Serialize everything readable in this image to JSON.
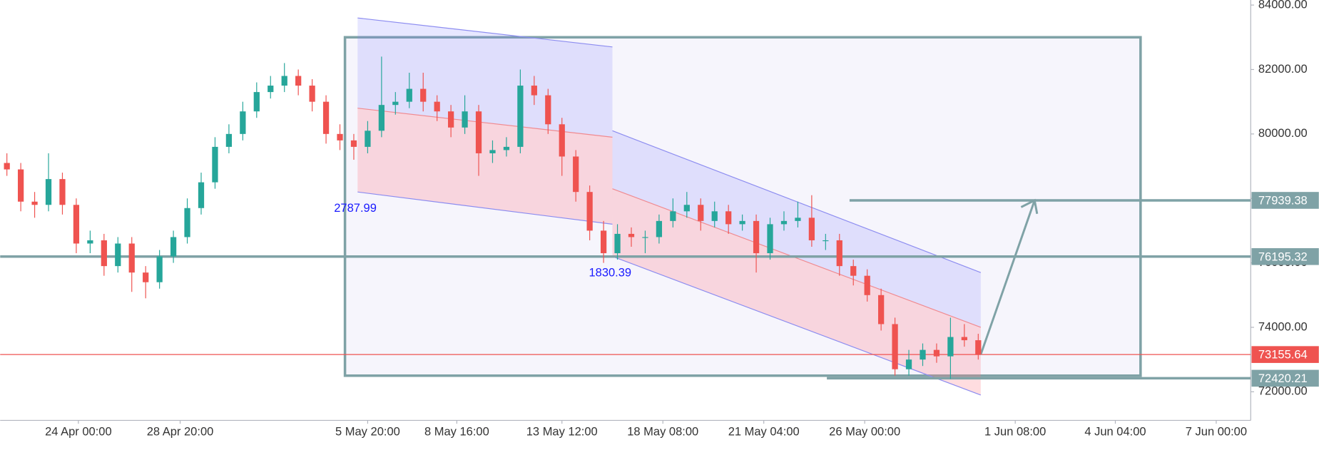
{
  "chart_data": {
    "type": "candlestick",
    "up_color": "#26a69a",
    "down_color": "#ef5350",
    "candles": [
      [
        79100,
        79400,
        78700,
        78900
      ],
      [
        78900,
        79100,
        77600,
        77900
      ],
      [
        77900,
        78200,
        77400,
        77800
      ],
      [
        77800,
        79400,
        77600,
        78600
      ],
      [
        78600,
        78800,
        77500,
        77800
      ],
      [
        77800,
        78000,
        76300,
        76600
      ],
      [
        76600,
        77000,
        76300,
        76700
      ],
      [
        76700,
        76900,
        75600,
        75900
      ],
      [
        75900,
        76800,
        75700,
        76600
      ],
      [
        76600,
        76800,
        75100,
        75700
      ],
      [
        75700,
        75900,
        74900,
        75400
      ],
      [
        75400,
        76400,
        75200,
        76200
      ],
      [
        76200,
        77000,
        76000,
        76800
      ],
      [
        76800,
        78000,
        76600,
        77700
      ],
      [
        77700,
        78800,
        77500,
        78500
      ],
      [
        78500,
        79900,
        78300,
        79600
      ],
      [
        79600,
        80300,
        79400,
        80000
      ],
      [
        80000,
        81000,
        79800,
        80700
      ],
      [
        80700,
        81600,
        80500,
        81300
      ],
      [
        81300,
        81800,
        81100,
        81500
      ],
      [
        81500,
        82200,
        81300,
        81800
      ],
      [
        81800,
        82000,
        81200,
        81500
      ],
      [
        81500,
        81700,
        80700,
        81000
      ],
      [
        81000,
        81200,
        79700,
        80000
      ],
      [
        80000,
        80300,
        79500,
        79800
      ],
      [
        79800,
        80000,
        79200,
        79600
      ],
      [
        79600,
        80400,
        79400,
        80100
      ],
      [
        80100,
        82400,
        79900,
        80900
      ],
      [
        80900,
        81300,
        80600,
        81000
      ],
      [
        81000,
        81900,
        80800,
        81400
      ],
      [
        81400,
        81900,
        80700,
        81000
      ],
      [
        81000,
        81200,
        80400,
        80700
      ],
      [
        80700,
        80900,
        79900,
        80200
      ],
      [
        80200,
        81200,
        80000,
        80700
      ],
      [
        80700,
        80900,
        78700,
        79400
      ],
      [
        79400,
        79800,
        79100,
        79500
      ],
      [
        79500,
        79900,
        79300,
        79600
      ],
      [
        79600,
        82000,
        79400,
        81500
      ],
      [
        81500,
        81800,
        80900,
        81200
      ],
      [
        81200,
        81400,
        80000,
        80300
      ],
      [
        80300,
        80500,
        78700,
        79300
      ],
      [
        79300,
        79500,
        77900,
        78200
      ],
      [
        78200,
        78400,
        76700,
        77000
      ],
      [
        77000,
        77300,
        76000,
        76300
      ],
      [
        76300,
        77200,
        76100,
        76900
      ],
      [
        76900,
        77100,
        76500,
        76800
      ],
      [
        76800,
        77000,
        76300,
        76800
      ],
      [
        76800,
        77500,
        76600,
        77300
      ],
      [
        77300,
        78000,
        77100,
        77600
      ],
      [
        77600,
        78200,
        77400,
        77800
      ],
      [
        77800,
        78000,
        77000,
        77300
      ],
      [
        77300,
        77900,
        77100,
        77600
      ],
      [
        77600,
        77800,
        76900,
        77200
      ],
      [
        77200,
        77500,
        77000,
        77300
      ],
      [
        77300,
        77500,
        75700,
        76300
      ],
      [
        76300,
        77400,
        76100,
        77200
      ],
      [
        77200,
        77600,
        77000,
        77300
      ],
      [
        77300,
        77900,
        77100,
        77400
      ],
      [
        77400,
        78100,
        76500,
        76700
      ],
      [
        76700,
        76900,
        76400,
        76700
      ],
      [
        76700,
        76900,
        75600,
        75900
      ],
      [
        75900,
        76100,
        75300,
        75600
      ],
      [
        75600,
        75800,
        74800,
        75000
      ],
      [
        75000,
        75200,
        73900,
        74100
      ],
      [
        74100,
        74300,
        72500,
        72700
      ],
      [
        72700,
        73300,
        72500,
        73000
      ],
      [
        73000,
        73500,
        72800,
        73300
      ],
      [
        73300,
        73500,
        72900,
        73100
      ],
      [
        73100,
        74300,
        72400,
        73700
      ],
      [
        73700,
        74100,
        73400,
        73600
      ],
      [
        73600,
        73800,
        73000,
        73155.64
      ]
    ],
    "xticks": [
      "24 Apr 00:00",
      "28 Apr 20:00",
      "5 May 20:00",
      "8 May 16:00",
      "13 May 12:00",
      "18 May 08:00",
      "21 May 04:00",
      "26 May 00:00",
      "1 Jun 08:00",
      "4 Jun 04:00",
      "7 Jun 00:00"
    ],
    "ylim": [
      71300,
      84150
    ],
    "yticks": [
      {
        "value": 72000,
        "label": "72000.00"
      },
      {
        "value": 74000,
        "label": "74000.00"
      },
      {
        "value": 76000,
        "label": "76000.00"
      },
      {
        "value": 78000,
        "label": "78000.00"
      },
      {
        "value": 80000,
        "label": "80000.00"
      },
      {
        "value": 82000,
        "label": "82000.00"
      },
      {
        "value": 84000,
        "label": "84000.00"
      }
    ],
    "price_lines": [
      {
        "value": 77939.38,
        "color": "#7fa2a6"
      },
      {
        "value": 76195.32,
        "color": "#7fa2a6"
      },
      {
        "value": 73155.64,
        "color": "#ef5350"
      },
      {
        "value": 72420.21,
        "color": "#7fa2a6"
      }
    ],
    "box": [
      83000,
      72500
    ],
    "channels": [
      {
        "label": 2787.99,
        "upper": [
          83600,
          82700
        ],
        "middle": [
          80800,
          79900
        ],
        "lower": [
          78200,
          77200
        ]
      },
      {
        "label": 1830.39,
        "upper": [
          80100,
          75700
        ],
        "middle": [
          78300,
          74000
        ],
        "lower": [
          76200,
          71900
        ]
      }
    ]
  }
}
